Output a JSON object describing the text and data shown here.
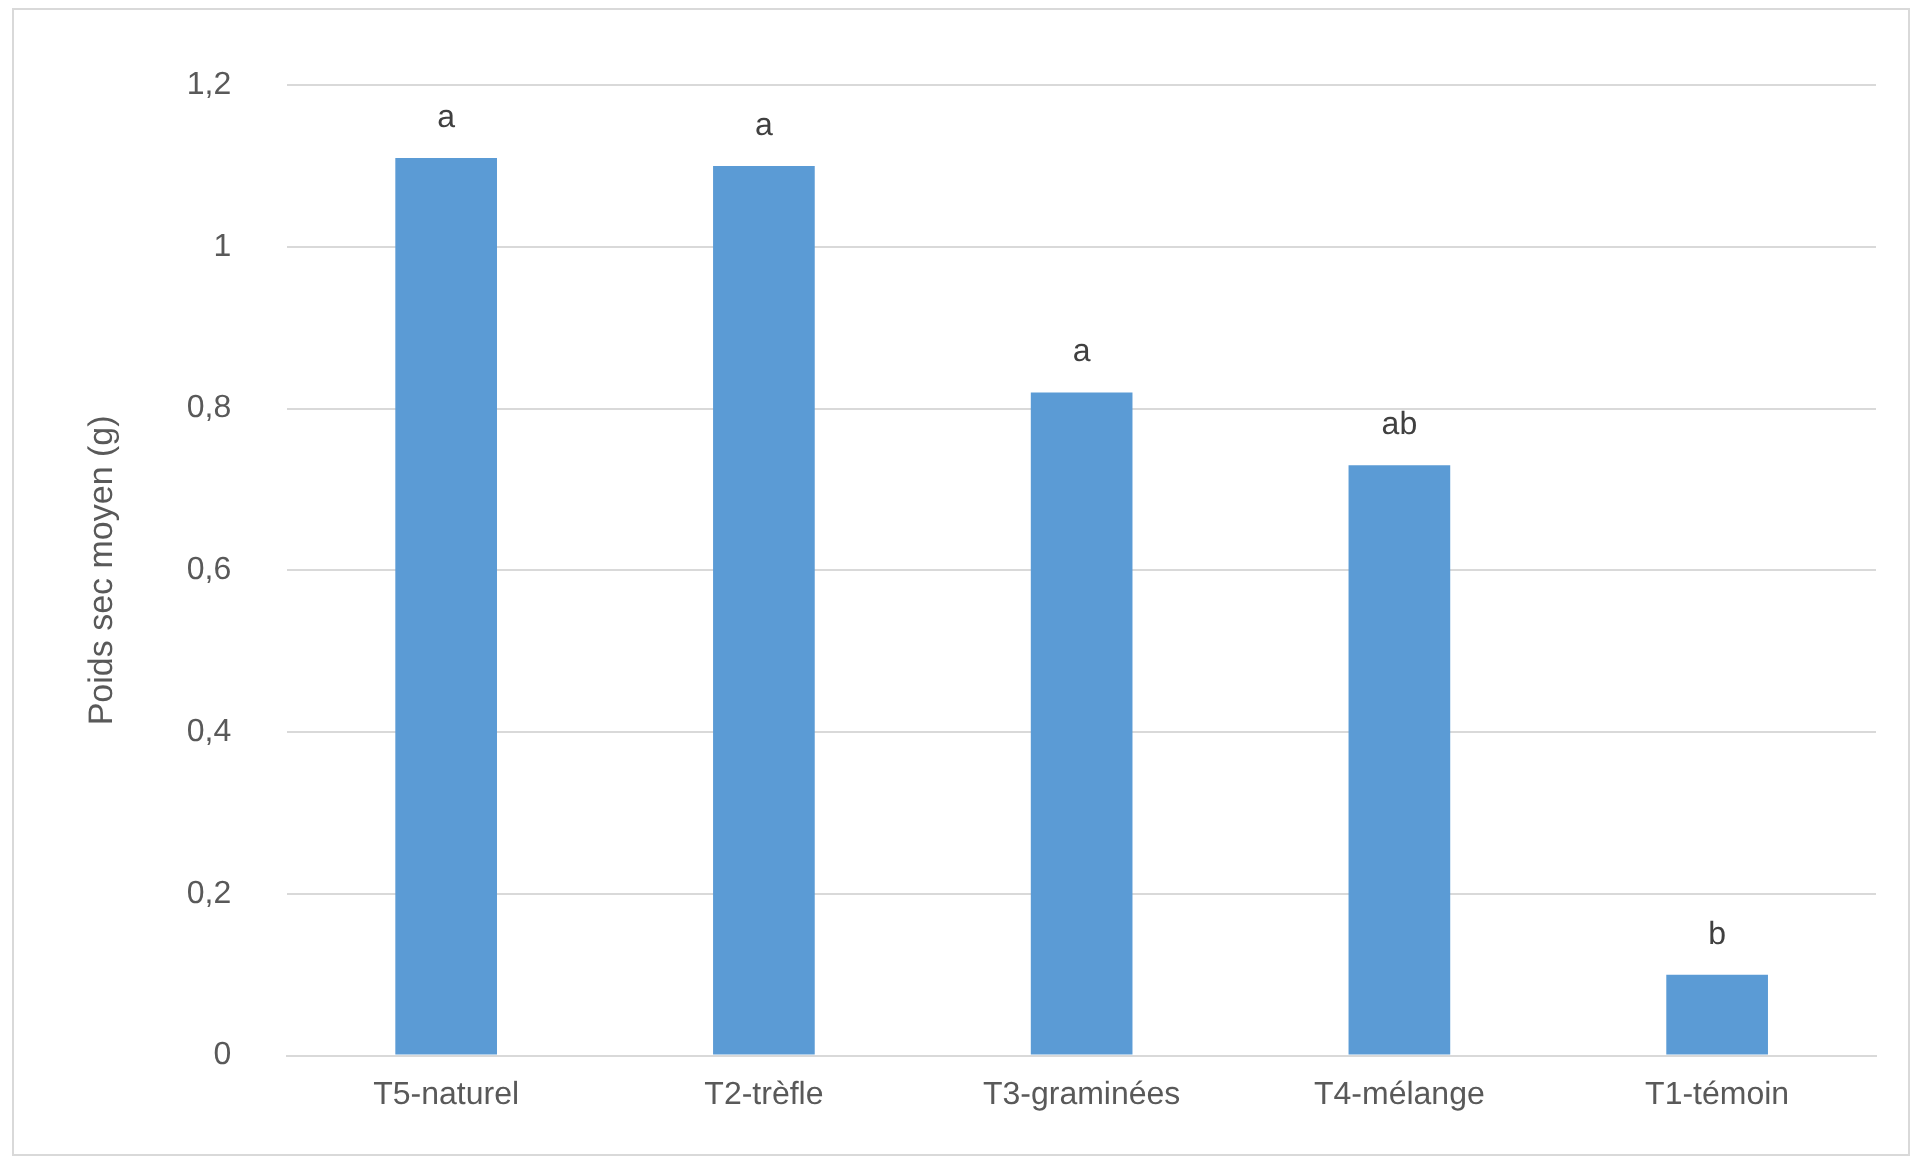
{
  "chart_data": {
    "type": "bar",
    "ylabel": "Poids sec moyen (g)",
    "categories": [
      "T5-naturel",
      "T2-trèfle",
      "T3-graminées",
      "T4-mélange",
      "T1-témoin"
    ],
    "values": [
      1.11,
      1.1,
      0.82,
      0.73,
      0.1
    ],
    "color": "#5b9bd5",
    "ylim": [
      0,
      1.2
    ],
    "yticks": [
      0,
      {
        "value": 0.2,
        "label": "0,2"
      },
      {
        "value": 0.4,
        "label": "0,4"
      },
      {
        "value": 0.6,
        "label": "0,6"
      },
      {
        "value": 0.8,
        "label": "0,8"
      },
      1,
      {
        "value": 1.2,
        "label": "1,2"
      }
    ],
    "grid": "y",
    "legend": false,
    "annotations": [
      {
        "text": "a",
        "x": "T5-naturel",
        "y": 1.11
      },
      {
        "text": "a",
        "x": "T2-trèfle",
        "y": 1.1
      },
      {
        "text": "a",
        "x": "T3-graminées",
        "y": 0.82
      },
      {
        "text": "ab",
        "x": "T4-mélange",
        "y": 0.73
      },
      {
        "text": "b",
        "x": "T1-témoin",
        "y": 0.1
      }
    ]
  }
}
